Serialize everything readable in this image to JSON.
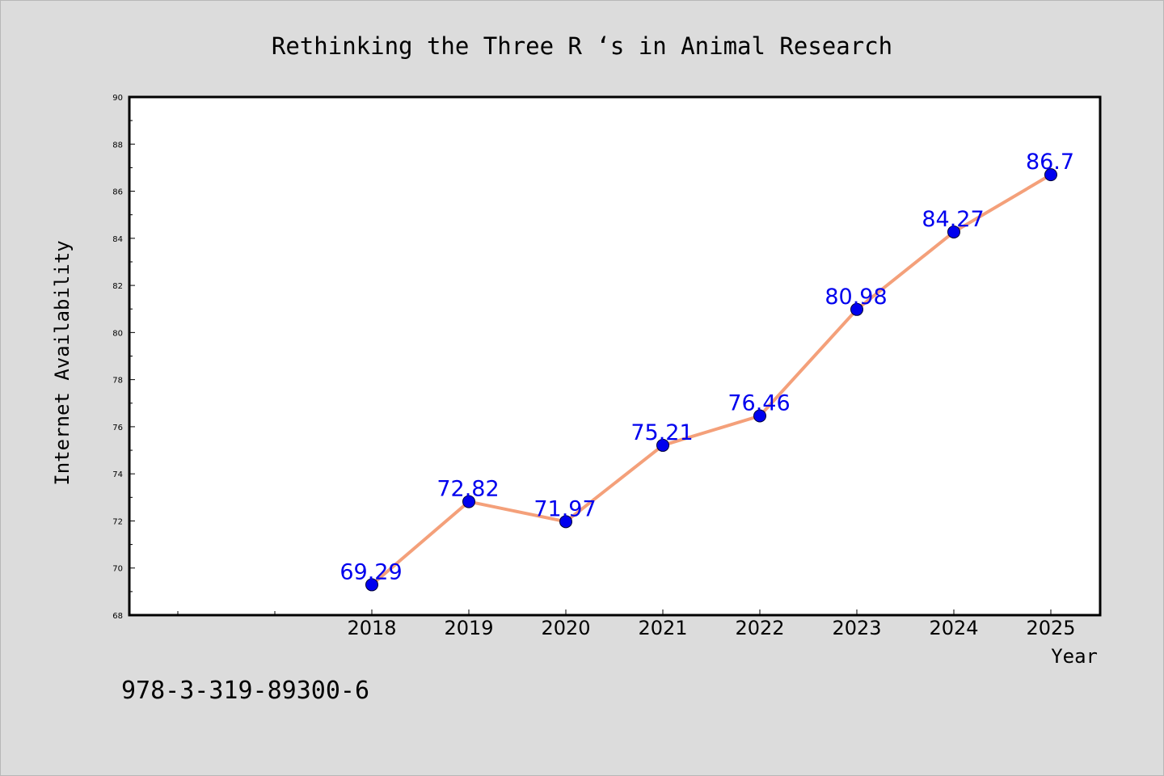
{
  "chart_data": {
    "type": "line",
    "title": "Rethinking the Three R ‘s in Animal Research",
    "xlabel": "Year",
    "ylabel": "Internet Availability",
    "categories": [
      "2018",
      "2019",
      "2020",
      "2021",
      "2022",
      "2023",
      "2024",
      "2025"
    ],
    "series": [
      {
        "values": [
          69.29,
          72.82,
          71.97,
          75.21,
          76.46,
          80.98,
          84.27,
          86.7
        ],
        "labels": [
          "69.29",
          "72.82",
          "71.97",
          "75.21",
          "76.46",
          "80.98",
          "84.27",
          "86.7"
        ],
        "line_color": "#f4a07a",
        "marker_color": "#0000ee",
        "label_color": "#0000ee"
      }
    ],
    "ylim": [
      68,
      90
    ],
    "yticks": [
      "68",
      "70",
      "72",
      "74",
      "76",
      "78",
      "80",
      "82",
      "84",
      "86",
      "88",
      "90"
    ],
    "grid": false,
    "legend": "none"
  },
  "footer": {
    "isbn": "978-3-319-89300-6"
  },
  "colors": {
    "background": "#dcdcdc",
    "plot_background": "#ffffff",
    "axis": "#000000"
  }
}
